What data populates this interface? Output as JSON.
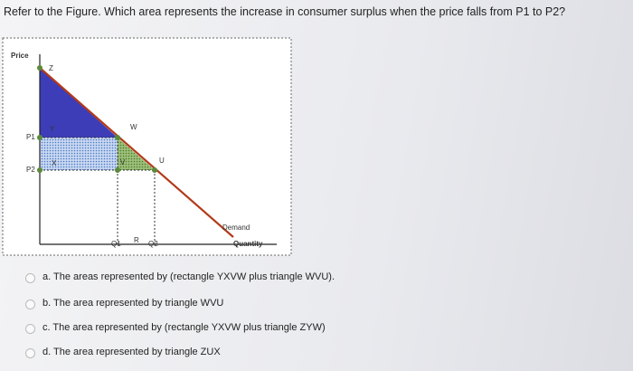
{
  "question": "Refer to the Figure. Which area represents the increase in consumer surplus when the price falls from P1 to P2?",
  "figure": {
    "axis_y": "Price",
    "axis_x": "Quantity",
    "curve": "Demand",
    "points": {
      "z": "Z",
      "w": "W",
      "y": "Y",
      "x": "X",
      "v": "V",
      "u": "U",
      "r": "R"
    },
    "prices": [
      "P1",
      "P2"
    ],
    "quantities": [
      "Q1",
      "Q2"
    ]
  },
  "options": [
    "a. The areas represented by (rectangle YXVW plus triangle WVU).",
    "b. The area represented by triangle WVU",
    "c. The area represented by (rectangle YXVW plus triangle ZYW)",
    "d. The area represented by triangle ZUX"
  ]
}
